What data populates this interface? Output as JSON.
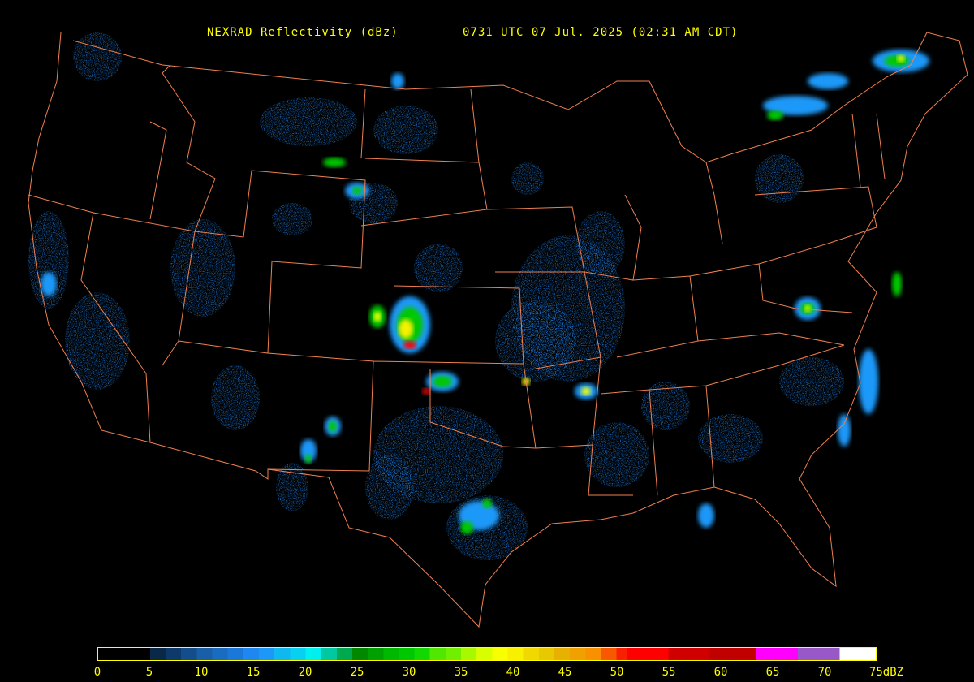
{
  "title": {
    "product": "NEXRAD Reflectivity (dBz)",
    "time": "0731 UTC 07 Jul. 2025 (02:31 AM CDT)"
  },
  "colors": {
    "background": "#000000",
    "boundaries": "#f08050",
    "text": "#ffff00"
  },
  "legend": {
    "unit": "dBZ",
    "min": 0,
    "max": 75,
    "ticks": [
      "0",
      "5",
      "10",
      "15",
      "20",
      "25",
      "30",
      "35",
      "40",
      "45",
      "50",
      "55",
      "60",
      "65",
      "70",
      "75dBZ"
    ],
    "color_stops": [
      {
        "from": 0,
        "color": "#000000"
      },
      {
        "from": 5,
        "color": "#0a2848"
      },
      {
        "from": 6.5,
        "color": "#0d3a6b"
      },
      {
        "from": 8,
        "color": "#134d8c"
      },
      {
        "from": 9.5,
        "color": "#185fa8"
      },
      {
        "from": 11,
        "color": "#1a6cc0"
      },
      {
        "from": 12.5,
        "color": "#1c78d8"
      },
      {
        "from": 14,
        "color": "#1e88f0"
      },
      {
        "from": 15.5,
        "color": "#1e98f8"
      },
      {
        "from": 17,
        "color": "#10b8f0"
      },
      {
        "from": 18.5,
        "color": "#08d0f0"
      },
      {
        "from": 20,
        "color": "#00f0f0"
      },
      {
        "from": 21.5,
        "color": "#00c8a0"
      },
      {
        "from": 23,
        "color": "#00a850"
      },
      {
        "from": 24.5,
        "color": "#008800"
      },
      {
        "from": 26,
        "color": "#00a000"
      },
      {
        "from": 27.5,
        "color": "#00b800"
      },
      {
        "from": 29,
        "color": "#00c800"
      },
      {
        "from": 30.5,
        "color": "#10d800"
      },
      {
        "from": 32,
        "color": "#50e800"
      },
      {
        "from": 33.5,
        "color": "#70f000"
      },
      {
        "from": 35,
        "color": "#a8f800"
      },
      {
        "from": 36.5,
        "color": "#d8ff00"
      },
      {
        "from": 38,
        "color": "#f8ff00"
      },
      {
        "from": 39.5,
        "color": "#f8f000"
      },
      {
        "from": 41,
        "color": "#f0d800"
      },
      {
        "from": 42.5,
        "color": "#e8c800"
      },
      {
        "from": 44,
        "color": "#e8b000"
      },
      {
        "from": 45.5,
        "color": "#f0a000"
      },
      {
        "from": 47,
        "color": "#f89000"
      },
      {
        "from": 48.5,
        "color": "#f85800"
      },
      {
        "from": 50,
        "color": "#f82000"
      },
      {
        "from": 51,
        "color": "#ff0000"
      },
      {
        "from": 55,
        "color": "#d00000"
      },
      {
        "from": 59,
        "color": "#c00000"
      },
      {
        "from": 63.5,
        "color": "#ff00ff"
      },
      {
        "from": 67.5,
        "color": "#9858c8"
      },
      {
        "from": 71.5,
        "color": "#ffffff"
      }
    ]
  }
}
